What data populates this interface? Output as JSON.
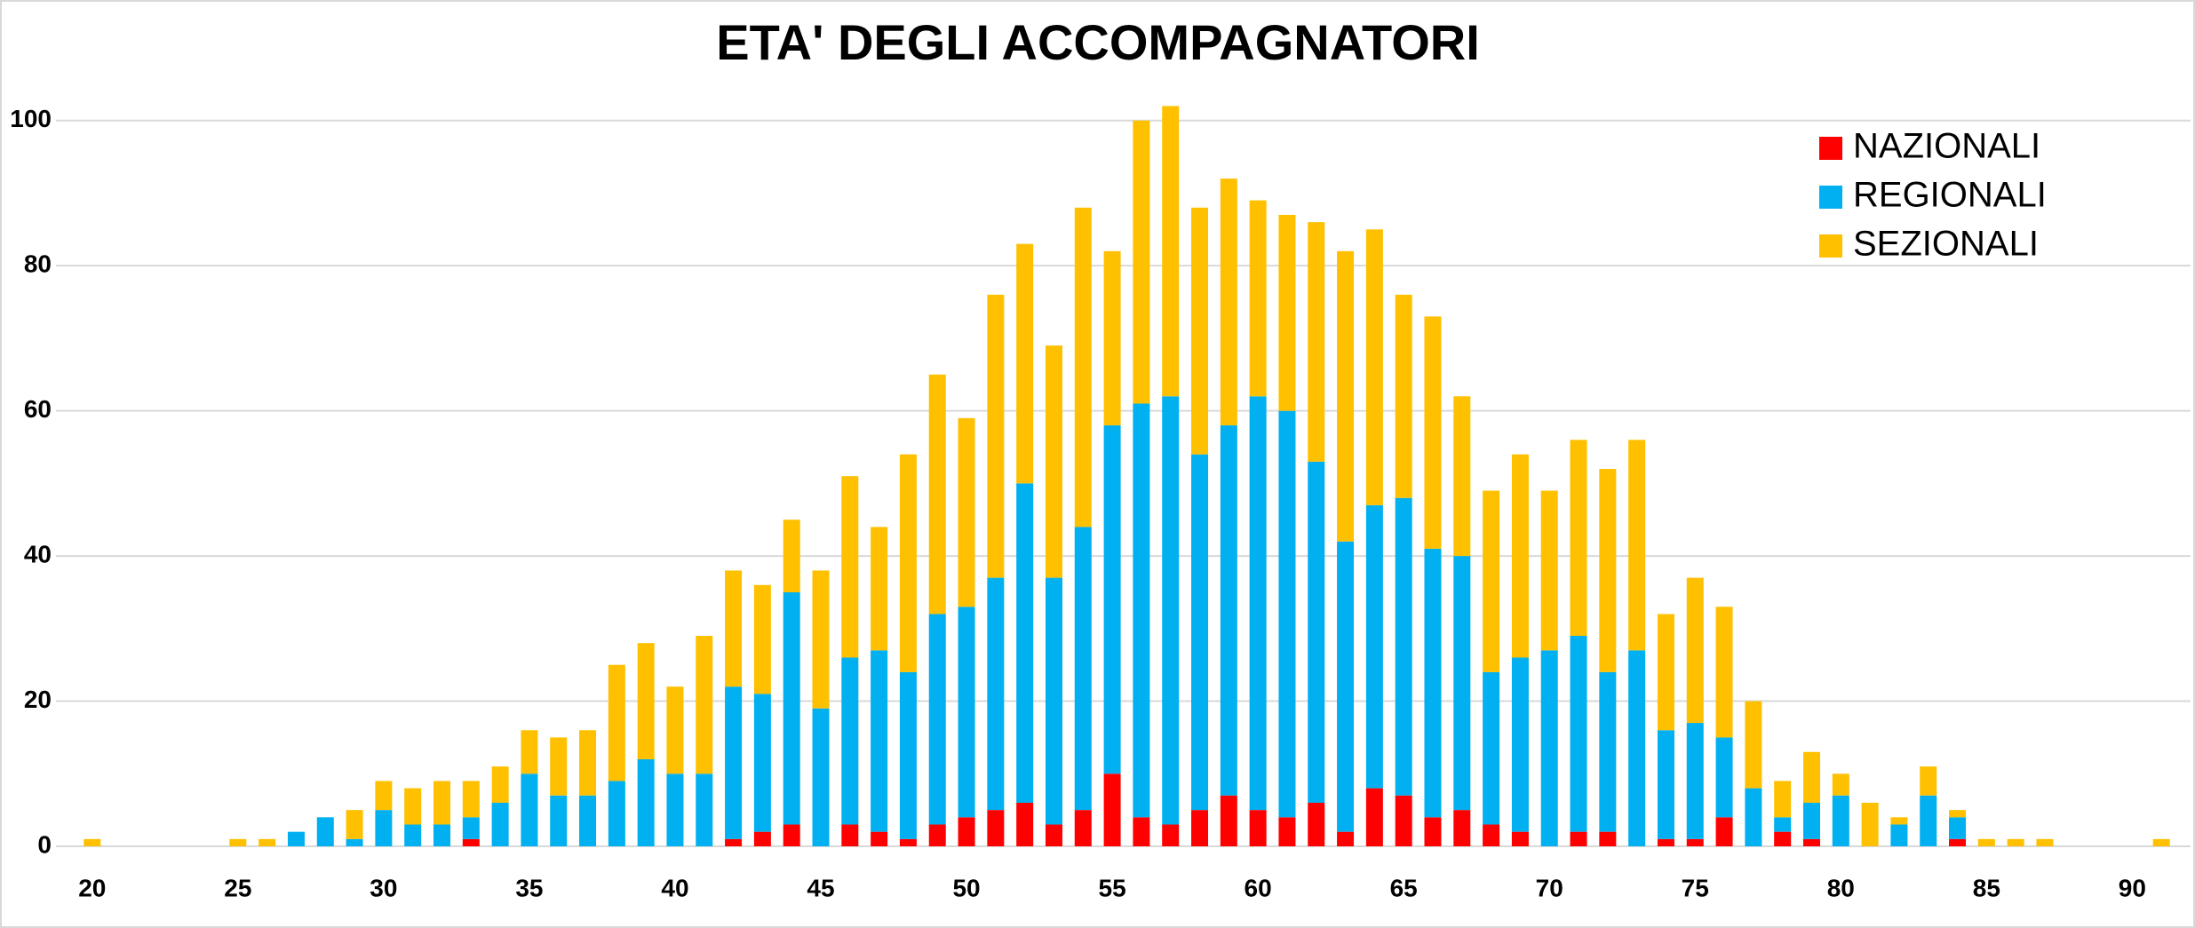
{
  "chart_data": {
    "type": "stacked-bar",
    "title": "ETA' DEGLI ACCOMPAGNATORI",
    "x": [
      20,
      21,
      22,
      23,
      24,
      25,
      26,
      27,
      28,
      29,
      30,
      31,
      32,
      33,
      34,
      35,
      36,
      37,
      38,
      39,
      40,
      41,
      42,
      43,
      44,
      45,
      46,
      47,
      48,
      49,
      50,
      51,
      52,
      53,
      54,
      55,
      56,
      57,
      58,
      59,
      60,
      61,
      62,
      63,
      64,
      65,
      66,
      67,
      68,
      69,
      70,
      71,
      72,
      73,
      74,
      75,
      76,
      77,
      78,
      79,
      80,
      81,
      82,
      83,
      84,
      85,
      86,
      87,
      88,
      89,
      90,
      91
    ],
    "series": [
      {
        "name": "NAZIONALI",
        "color": "#ff0000",
        "values": [
          0,
          0,
          0,
          0,
          0,
          0,
          0,
          0,
          0,
          0,
          0,
          0,
          0,
          1,
          0,
          0,
          0,
          0,
          0,
          0,
          0,
          0,
          1,
          2,
          3,
          0,
          3,
          2,
          1,
          3,
          4,
          5,
          6,
          3,
          5,
          10,
          4,
          3,
          5,
          7,
          5,
          4,
          6,
          2,
          8,
          7,
          4,
          5,
          3,
          2,
          0,
          2,
          2,
          0,
          1,
          1,
          4,
          0,
          2,
          1,
          0,
          0,
          0,
          0,
          1,
          0,
          0,
          0,
          0,
          0,
          0,
          0
        ]
      },
      {
        "name": "REGIONALI",
        "color": "#00b0f0",
        "values": [
          0,
          0,
          0,
          0,
          0,
          0,
          0,
          2,
          4,
          1,
          5,
          3,
          3,
          3,
          6,
          10,
          7,
          7,
          9,
          12,
          10,
          10,
          21,
          19,
          32,
          19,
          23,
          25,
          23,
          29,
          29,
          32,
          44,
          34,
          39,
          48,
          57,
          59,
          49,
          51,
          57,
          56,
          47,
          40,
          39,
          41,
          37,
          35,
          21,
          24,
          27,
          27,
          22,
          27,
          15,
          16,
          11,
          8,
          2,
          5,
          7,
          0,
          3,
          7,
          3,
          0,
          0,
          0,
          0,
          0,
          0,
          0
        ]
      },
      {
        "name": "SEZIONALI",
        "color": "#ffc000",
        "values": [
          1,
          0,
          0,
          0,
          0,
          1,
          1,
          0,
          0,
          4,
          4,
          5,
          6,
          5,
          5,
          6,
          8,
          9,
          16,
          16,
          12,
          19,
          16,
          15,
          10,
          19,
          25,
          17,
          30,
          33,
          26,
          39,
          33,
          32,
          44,
          24,
          39,
          40,
          34,
          34,
          27,
          27,
          33,
          40,
          38,
          28,
          32,
          22,
          25,
          28,
          22,
          27,
          28,
          29,
          16,
          20,
          18,
          12,
          5,
          7,
          3,
          6,
          1,
          4,
          1,
          1,
          1,
          1,
          0,
          0,
          0,
          1
        ]
      }
    ],
    "xlim": [
      19,
      92
    ],
    "xticks": [
      20,
      25,
      30,
      35,
      40,
      45,
      50,
      55,
      60,
      65,
      70,
      75,
      80,
      85,
      90
    ],
    "ylim": [
      0,
      110
    ],
    "yticks": [
      0,
      20,
      40,
      60,
      80,
      100
    ],
    "grid": true,
    "legend": "top-right"
  }
}
